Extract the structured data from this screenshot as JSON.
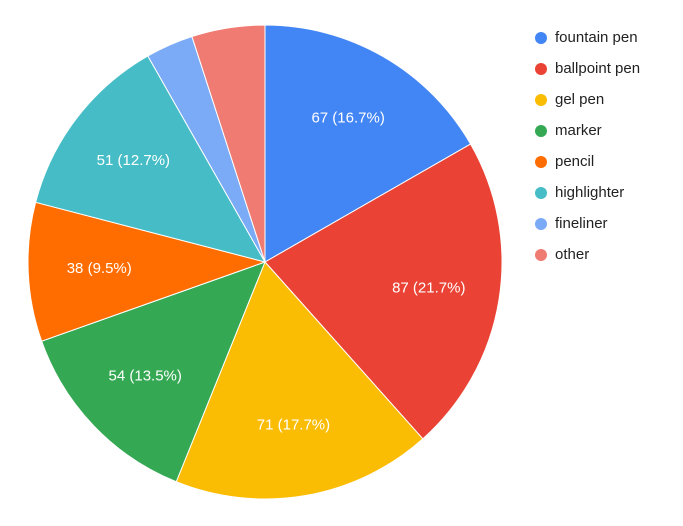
{
  "chart_data": {
    "type": "pie",
    "categories": [
      "fountain pen",
      "ballpoint pen",
      "gel pen",
      "marker",
      "pencil",
      "highlighter",
      "fineliner",
      "other"
    ],
    "values": [
      67,
      87,
      71,
      54,
      38,
      51,
      13,
      20
    ],
    "value_labels": [
      "67 (16.7%)",
      "87 (21.7%)",
      "71 (17.7%)",
      "54 (13.5%)",
      "38 (9.5%)",
      "51 (12.7%)",
      null,
      null
    ],
    "colors": [
      "#4285f4",
      "#ea4335",
      "#fbbc04",
      "#34a853",
      "#ff6d01",
      "#46bdc6",
      "#7baaf7",
      "#f07b72"
    ],
    "legend": "right"
  }
}
